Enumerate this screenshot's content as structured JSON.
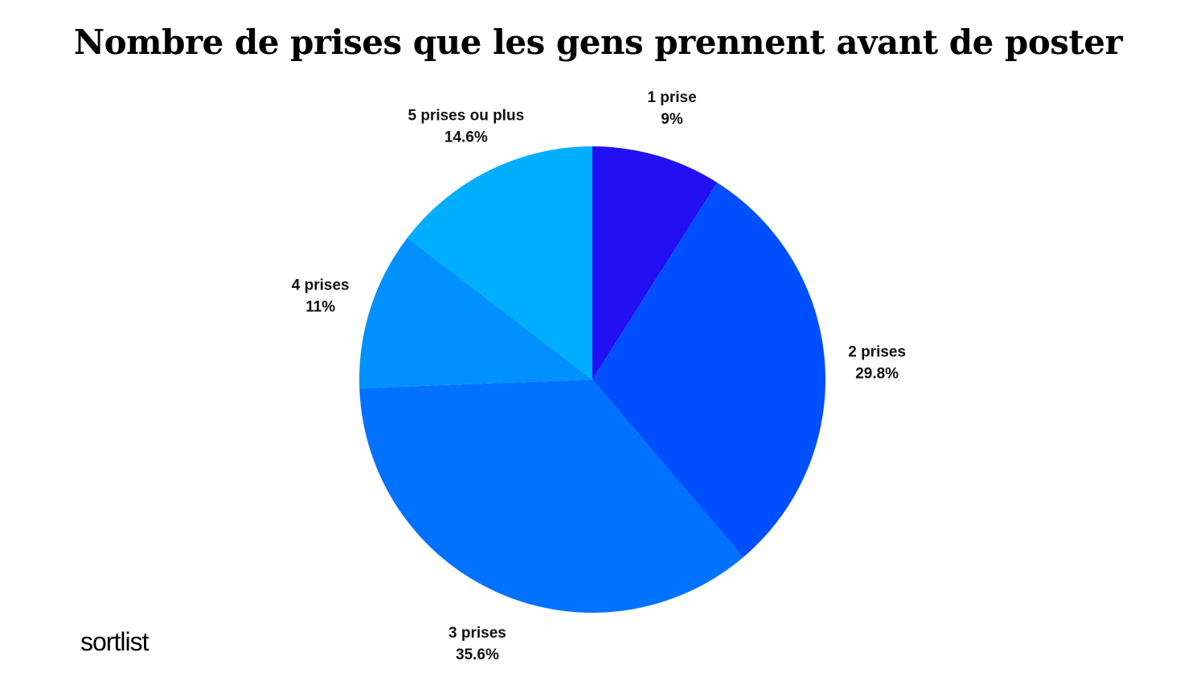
{
  "chart_data": {
    "type": "pie",
    "title": "Nombre de prises que les gens prennent avant de poster",
    "start_angle_deg": 0,
    "direction": "clockwise",
    "slices": [
      {
        "label": "1 prise",
        "value": 9,
        "value_label": "9%",
        "color": "#2210F2"
      },
      {
        "label": "2 prises",
        "value": 29.8,
        "value_label": "29.8%",
        "color": "#004FFF"
      },
      {
        "label": "3 prises",
        "value": 35.6,
        "value_label": "35.6%",
        "color": "#0072FF"
      },
      {
        "label": "4 prises",
        "value": 11,
        "value_label": "11%",
        "color": "#0091FF"
      },
      {
        "label": "5 prises ou plus",
        "value": 14.6,
        "value_label": "14.6%",
        "color": "#00AFFF"
      }
    ]
  },
  "brand": {
    "logo_text": "sortlist"
  }
}
